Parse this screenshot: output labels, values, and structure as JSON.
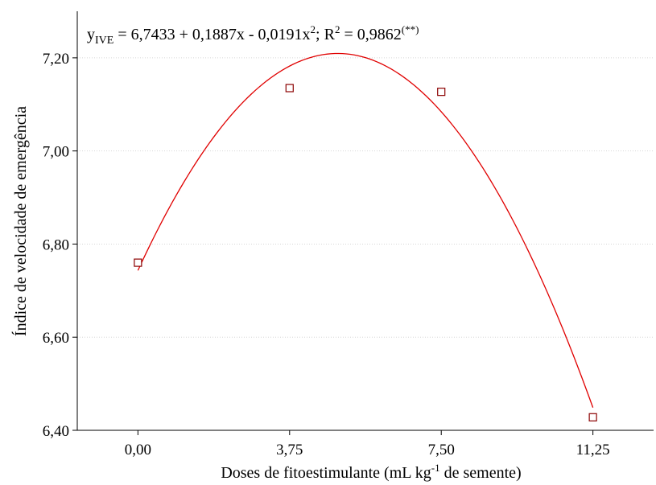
{
  "chart_data": {
    "type": "scatter",
    "title": "",
    "xlabel_prefix": "Doses de fitoestimulante (mL kg",
    "xlabel_sup": "-1",
    "xlabel_suffix": " de semente)",
    "ylabel": "Índice de velocidade de emergência",
    "x_ticks": [
      {
        "value": 0,
        "label": "0,00"
      },
      {
        "value": 3.75,
        "label": "3,75"
      },
      {
        "value": 7.5,
        "label": "7,50"
      },
      {
        "value": 11.25,
        "label": "11,25"
      }
    ],
    "y_ticks": [
      {
        "value": 6.4,
        "label": "6,40"
      },
      {
        "value": 6.6,
        "label": "6,60"
      },
      {
        "value": 6.8,
        "label": "6,80"
      },
      {
        "value": 7.0,
        "label": "7,00"
      },
      {
        "value": 7.2,
        "label": "7,20"
      }
    ],
    "xlim": [
      -1.5,
      12.75
    ],
    "ylim": [
      6.4,
      7.3
    ],
    "grid": "horizontal-dotted",
    "points": [
      {
        "x": 0,
        "y": 6.76
      },
      {
        "x": 3.75,
        "y": 7.135
      },
      {
        "x": 7.5,
        "y": 7.127
      },
      {
        "x": 11.25,
        "y": 6.428
      }
    ],
    "fit": {
      "intercept": 6.7433,
      "b1": 0.1887,
      "b2": -0.0191,
      "x_range": [
        0,
        11.25
      ]
    },
    "equation": {
      "y_symbol": "y",
      "y_subscript": "IVE",
      "text_main": " = 6,7433 + 0,1887x - 0,0191x",
      "x_exp": "2",
      "text_r": "; R",
      "r_exp": "2",
      "text_value": " = 0,9862",
      "signif": "(**)"
    },
    "colors": {
      "curve": "#e00000",
      "marker": "#8b0000",
      "axis": "#000000"
    }
  }
}
